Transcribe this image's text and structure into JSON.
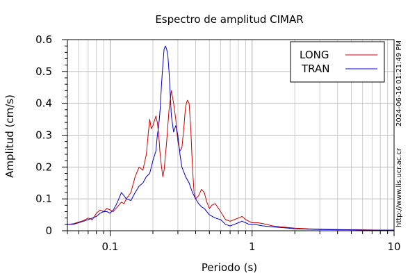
{
  "chart_data": {
    "type": "line",
    "title": "Espectro de amplitud CIMAR",
    "xlabel": "Periodo (s)",
    "ylabel": "Amplitud (cm/s)",
    "xscale": "log",
    "xlim": [
      0.05,
      10
    ],
    "ylim": [
      0,
      0.6
    ],
    "grid": true,
    "legend_position": "top-right",
    "x_ticks": [
      {
        "value": 0.1,
        "label": "0.1"
      },
      {
        "value": 1,
        "label": "1"
      },
      {
        "value": 10,
        "label": "10"
      }
    ],
    "y_ticks": [
      {
        "value": 0,
        "label": "0"
      },
      {
        "value": 0.1,
        "label": "0.1"
      },
      {
        "value": 0.2,
        "label": "0.2"
      },
      {
        "value": 0.3,
        "label": "0.3"
      },
      {
        "value": 0.4,
        "label": "0.4"
      },
      {
        "value": 0.5,
        "label": "0.5"
      },
      {
        "value": 0.6,
        "label": "0.6"
      }
    ],
    "side_annotations": [
      "2024-06-16 01:21:49 PM",
      "http://www.lis.ucr.ac.cr"
    ],
    "series": [
      {
        "name": "LONG",
        "color": "#cc0000",
        "points": [
          [
            0.05,
            0.02
          ],
          [
            0.055,
            0.022
          ],
          [
            0.06,
            0.027
          ],
          [
            0.065,
            0.032
          ],
          [
            0.07,
            0.04
          ],
          [
            0.075,
            0.035
          ],
          [
            0.08,
            0.055
          ],
          [
            0.085,
            0.065
          ],
          [
            0.09,
            0.06
          ],
          [
            0.095,
            0.07
          ],
          [
            0.1,
            0.065
          ],
          [
            0.105,
            0.06
          ],
          [
            0.11,
            0.07
          ],
          [
            0.115,
            0.08
          ],
          [
            0.12,
            0.09
          ],
          [
            0.125,
            0.085
          ],
          [
            0.13,
            0.1
          ],
          [
            0.14,
            0.12
          ],
          [
            0.15,
            0.17
          ],
          [
            0.16,
            0.2
          ],
          [
            0.17,
            0.19
          ],
          [
            0.18,
            0.24
          ],
          [
            0.185,
            0.3
          ],
          [
            0.19,
            0.35
          ],
          [
            0.195,
            0.32
          ],
          [
            0.2,
            0.33
          ],
          [
            0.21,
            0.36
          ],
          [
            0.215,
            0.34
          ],
          [
            0.22,
            0.3
          ],
          [
            0.225,
            0.24
          ],
          [
            0.23,
            0.2
          ],
          [
            0.235,
            0.17
          ],
          [
            0.24,
            0.19
          ],
          [
            0.25,
            0.28
          ],
          [
            0.26,
            0.38
          ],
          [
            0.27,
            0.44
          ],
          [
            0.28,
            0.4
          ],
          [
            0.29,
            0.35
          ],
          [
            0.3,
            0.28
          ],
          [
            0.31,
            0.25
          ],
          [
            0.32,
            0.26
          ],
          [
            0.33,
            0.32
          ],
          [
            0.34,
            0.39
          ],
          [
            0.35,
            0.41
          ],
          [
            0.36,
            0.4
          ],
          [
            0.37,
            0.32
          ],
          [
            0.38,
            0.2
          ],
          [
            0.39,
            0.12
          ],
          [
            0.4,
            0.1
          ],
          [
            0.42,
            0.11
          ],
          [
            0.44,
            0.13
          ],
          [
            0.46,
            0.12
          ],
          [
            0.48,
            0.09
          ],
          [
            0.5,
            0.07
          ],
          [
            0.52,
            0.08
          ],
          [
            0.55,
            0.085
          ],
          [
            0.58,
            0.07
          ],
          [
            0.62,
            0.05
          ],
          [
            0.65,
            0.035
          ],
          [
            0.7,
            0.03
          ],
          [
            0.75,
            0.035
          ],
          [
            0.8,
            0.04
          ],
          [
            0.85,
            0.045
          ],
          [
            0.9,
            0.035
          ],
          [
            0.95,
            0.03
          ],
          [
            1.0,
            0.025
          ],
          [
            1.1,
            0.025
          ],
          [
            1.2,
            0.022
          ],
          [
            1.4,
            0.015
          ],
          [
            1.6,
            0.012
          ],
          [
            1.8,
            0.01
          ],
          [
            2.0,
            0.008
          ],
          [
            2.5,
            0.006
          ],
          [
            3.0,
            0.005
          ],
          [
            4.0,
            0.004
          ],
          [
            5.0,
            0.003
          ],
          [
            6.0,
            0.003
          ],
          [
            8.0,
            0.002
          ],
          [
            10.0,
            0.002
          ]
        ]
      },
      {
        "name": "TRAN",
        "color": "#0000cc",
        "points": [
          [
            0.05,
            0.02
          ],
          [
            0.055,
            0.02
          ],
          [
            0.06,
            0.025
          ],
          [
            0.065,
            0.03
          ],
          [
            0.07,
            0.035
          ],
          [
            0.075,
            0.04
          ],
          [
            0.08,
            0.045
          ],
          [
            0.085,
            0.055
          ],
          [
            0.09,
            0.06
          ],
          [
            0.095,
            0.06
          ],
          [
            0.1,
            0.055
          ],
          [
            0.105,
            0.065
          ],
          [
            0.11,
            0.08
          ],
          [
            0.115,
            0.1
          ],
          [
            0.12,
            0.12
          ],
          [
            0.125,
            0.11
          ],
          [
            0.13,
            0.1
          ],
          [
            0.14,
            0.095
          ],
          [
            0.15,
            0.12
          ],
          [
            0.16,
            0.14
          ],
          [
            0.17,
            0.15
          ],
          [
            0.18,
            0.17
          ],
          [
            0.19,
            0.18
          ],
          [
            0.2,
            0.22
          ],
          [
            0.21,
            0.25
          ],
          [
            0.215,
            0.3
          ],
          [
            0.22,
            0.33
          ],
          [
            0.225,
            0.38
          ],
          [
            0.23,
            0.46
          ],
          [
            0.235,
            0.52
          ],
          [
            0.24,
            0.57
          ],
          [
            0.245,
            0.58
          ],
          [
            0.25,
            0.57
          ],
          [
            0.255,
            0.55
          ],
          [
            0.26,
            0.5
          ],
          [
            0.265,
            0.43
          ],
          [
            0.27,
            0.36
          ],
          [
            0.28,
            0.31
          ],
          [
            0.29,
            0.33
          ],
          [
            0.3,
            0.3
          ],
          [
            0.31,
            0.24
          ],
          [
            0.32,
            0.2
          ],
          [
            0.34,
            0.17
          ],
          [
            0.36,
            0.15
          ],
          [
            0.38,
            0.12
          ],
          [
            0.4,
            0.1
          ],
          [
            0.42,
            0.085
          ],
          [
            0.44,
            0.075
          ],
          [
            0.46,
            0.07
          ],
          [
            0.48,
            0.06
          ],
          [
            0.5,
            0.05
          ],
          [
            0.55,
            0.04
          ],
          [
            0.6,
            0.035
          ],
          [
            0.65,
            0.02
          ],
          [
            0.7,
            0.015
          ],
          [
            0.75,
            0.02
          ],
          [
            0.8,
            0.025
          ],
          [
            0.85,
            0.03
          ],
          [
            0.9,
            0.025
          ],
          [
            0.95,
            0.02
          ],
          [
            1.0,
            0.02
          ],
          [
            1.1,
            0.018
          ],
          [
            1.2,
            0.015
          ],
          [
            1.4,
            0.012
          ],
          [
            1.6,
            0.01
          ],
          [
            1.8,
            0.008
          ],
          [
            2.0,
            0.006
          ],
          [
            2.5,
            0.005
          ],
          [
            3.0,
            0.004
          ],
          [
            4.0,
            0.003
          ],
          [
            5.0,
            0.003
          ],
          [
            6.0,
            0.002
          ],
          [
            8.0,
            0.002
          ],
          [
            10.0,
            0.002
          ]
        ]
      }
    ]
  }
}
